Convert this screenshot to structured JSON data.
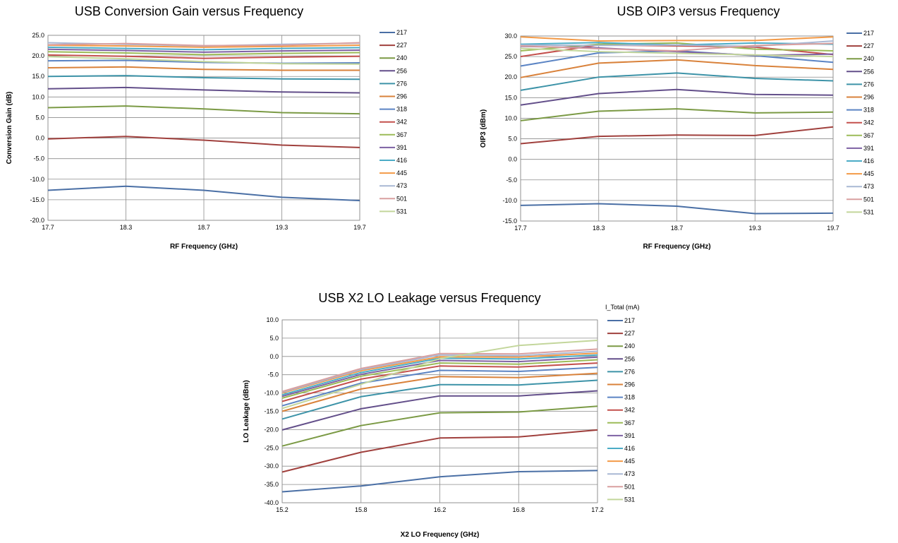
{
  "chart_data": [
    {
      "type": "line",
      "title": "USB Conversion Gain versus Frequency",
      "xlabel": "RF Frequency (GHz)",
      "ylabel": "Conversion Gain (dB)",
      "x": [
        "17.7",
        "18.3",
        "18.7",
        "19.3",
        "19.7"
      ],
      "ylim": [
        -20,
        25
      ],
      "yticks": [
        "25.0",
        "20.0",
        "15.0",
        "10.0",
        "5.0",
        "0.0",
        "-5.0",
        "-10.0",
        "-15.0",
        "-20.0"
      ],
      "grid": true,
      "legend_position": "right",
      "legend_title": "",
      "series": [
        {
          "name": "217",
          "values": [
            -12.7,
            -11.7,
            -12.7,
            -14.4,
            -15.2
          ]
        },
        {
          "name": "227",
          "values": [
            -0.2,
            0.4,
            -0.5,
            -1.7,
            -2.3
          ]
        },
        {
          "name": "240",
          "values": [
            7.4,
            7.8,
            7.1,
            6.2,
            5.9
          ]
        },
        {
          "name": "256",
          "values": [
            12.0,
            12.3,
            11.7,
            11.2,
            11.0
          ]
        },
        {
          "name": "276",
          "values": [
            15.0,
            15.2,
            14.7,
            14.4,
            14.3
          ]
        },
        {
          "name": "296",
          "values": [
            17.1,
            17.3,
            16.7,
            16.5,
            16.5
          ]
        },
        {
          "name": "318",
          "values": [
            18.8,
            18.9,
            18.4,
            18.2,
            18.3
          ]
        },
        {
          "name": "342",
          "values": [
            20.2,
            19.9,
            19.4,
            19.7,
            19.9
          ]
        },
        {
          "name": "367",
          "values": [
            21.0,
            20.7,
            20.3,
            20.6,
            20.8
          ]
        },
        {
          "name": "391",
          "values": [
            21.6,
            21.3,
            20.9,
            21.2,
            21.4
          ]
        },
        {
          "name": "416",
          "values": [
            22.1,
            21.8,
            21.5,
            21.8,
            22.0
          ]
        },
        {
          "name": "445",
          "values": [
            22.6,
            22.4,
            22.1,
            22.3,
            22.6
          ]
        },
        {
          "name": "473",
          "values": [
            23.2,
            22.8,
            22.4,
            22.8,
            23.1
          ]
        },
        {
          "name": "501",
          "values": [
            22.7,
            23.0,
            22.5,
            22.6,
            23.2
          ]
        },
        {
          "name": "531",
          "values": [
            19.8,
            19.3,
            18.6,
            18.1,
            18.0
          ]
        }
      ],
      "colors": [
        "#4a6fa5",
        "#a0403d",
        "#7b9a45",
        "#634f8a",
        "#3d93a8",
        "#d9823b",
        "#5b84c4",
        "#c4504d",
        "#9cbb58",
        "#7d61a3",
        "#4bacc6",
        "#f39a47",
        "#a9b8d4",
        "#d9a0a0",
        "#c3d69b"
      ]
    },
    {
      "type": "line",
      "title": "USB OIP3 versus Frequency",
      "xlabel": "RF Frequency (GHz)",
      "ylabel": "OIP3  (dBm)",
      "x": [
        "17.7",
        "18.3",
        "18.7",
        "19.3",
        "19.7"
      ],
      "ylim": [
        -15,
        30
      ],
      "yticks": [
        "30.0",
        "25.0",
        "20.0",
        "15.0",
        "10.0",
        "5.0",
        "0.0",
        "-5.0",
        "-10.0",
        "-15.0"
      ],
      "grid": true,
      "legend_position": "right",
      "legend_title": "",
      "series": [
        {
          "name": "217",
          "values": [
            -11.2,
            -10.8,
            -11.4,
            -13.2,
            -13.1
          ]
        },
        {
          "name": "227",
          "values": [
            3.8,
            5.6,
            5.9,
            5.8,
            7.9
          ]
        },
        {
          "name": "240",
          "values": [
            9.4,
            11.7,
            12.3,
            11.3,
            11.5
          ]
        },
        {
          "name": "256",
          "values": [
            13.2,
            16.0,
            17.0,
            15.8,
            15.6
          ]
        },
        {
          "name": "276",
          "values": [
            16.8,
            20.0,
            21.0,
            19.7,
            19.1
          ]
        },
        {
          "name": "296",
          "values": [
            19.9,
            23.4,
            24.2,
            22.8,
            21.9
          ]
        },
        {
          "name": "318",
          "values": [
            22.7,
            25.9,
            26.4,
            25.2,
            23.6
          ]
        },
        {
          "name": "342",
          "values": [
            25.0,
            27.8,
            27.6,
            27.3,
            25.5
          ]
        },
        {
          "name": "367",
          "values": [
            26.4,
            28.0,
            28.3,
            26.8,
            26.4
          ]
        },
        {
          "name": "391",
          "values": [
            27.5,
            27.1,
            26.2,
            25.3,
            25.6
          ]
        },
        {
          "name": "416",
          "values": [
            28.0,
            28.4,
            27.8,
            28.3,
            28.0
          ]
        },
        {
          "name": "445",
          "values": [
            29.8,
            28.8,
            28.9,
            28.9,
            29.8
          ]
        },
        {
          "name": "473",
          "values": [
            27.8,
            27.7,
            27.8,
            27.5,
            28.8
          ]
        },
        {
          "name": "501",
          "values": [
            27.6,
            26.9,
            26.4,
            27.7,
            28.2
          ]
        },
        {
          "name": "531",
          "values": [
            27.0,
            26.2,
            25.8,
            25.4,
            25.0
          ]
        }
      ],
      "colors": [
        "#4a6fa5",
        "#a0403d",
        "#7b9a45",
        "#634f8a",
        "#3d93a8",
        "#d9823b",
        "#5b84c4",
        "#c4504d",
        "#9cbb58",
        "#7d61a3",
        "#4bacc6",
        "#f39a47",
        "#a9b8d4",
        "#d9a0a0",
        "#c3d69b"
      ]
    },
    {
      "type": "line",
      "title": "USB X2 LO Leakage versus Frequency",
      "xlabel": "X2 LO Frequency (GHz)",
      "ylabel": "LO Leakage  (dBm)",
      "x": [
        "15.2",
        "15.8",
        "16.2",
        "16.8",
        "17.2"
      ],
      "ylim": [
        -40,
        10
      ],
      "yticks": [
        "10.0",
        "5.0",
        "0.0",
        "-5.0",
        "-10.0",
        "-15.0",
        "-20.0",
        "-25.0",
        "-30.0",
        "-35.0",
        "-40.0"
      ],
      "grid": true,
      "legend_position": "right",
      "legend_title": "I_Total (mA)",
      "series": [
        {
          "name": "217",
          "values": [
            -37.0,
            -35.4,
            -32.9,
            -31.5,
            -31.2
          ]
        },
        {
          "name": "227",
          "values": [
            -31.6,
            -26.2,
            -22.3,
            -22.0,
            -20.1
          ]
        },
        {
          "name": "240",
          "values": [
            -24.5,
            -18.9,
            -15.4,
            -15.2,
            -13.6
          ]
        },
        {
          "name": "256",
          "values": [
            -20.1,
            -14.3,
            -10.8,
            -10.8,
            -9.4
          ]
        },
        {
          "name": "276",
          "values": [
            -17.1,
            -11.0,
            -7.7,
            -7.8,
            -6.5
          ]
        },
        {
          "name": "296",
          "values": [
            -15.0,
            -8.9,
            -5.5,
            -5.8,
            -4.6
          ]
        },
        {
          "name": "318",
          "values": [
            -13.5,
            -7.3,
            -3.8,
            -4.1,
            -3.0
          ]
        },
        {
          "name": "342",
          "values": [
            -12.3,
            -6.2,
            -2.6,
            -2.9,
            -1.8
          ]
        },
        {
          "name": "367",
          "values": [
            -11.4,
            -5.4,
            -1.8,
            -2.1,
            -0.9
          ]
        },
        {
          "name": "391",
          "values": [
            -10.9,
            -4.9,
            -1.1,
            -1.4,
            -0.2
          ]
        },
        {
          "name": "416",
          "values": [
            -10.5,
            -4.4,
            -0.5,
            -0.7,
            0.4
          ]
        },
        {
          "name": "445",
          "values": [
            -10.0,
            -3.9,
            -0.1,
            -0.2,
            0.9
          ]
        },
        {
          "name": "473",
          "values": [
            -9.8,
            -3.6,
            0.4,
            0.2,
            1.4
          ]
        },
        {
          "name": "501",
          "values": [
            -9.6,
            -3.3,
            0.8,
            0.7,
            2.0
          ]
        },
        {
          "name": "531",
          "values": [
            -14.2,
            -7.6,
            -0.6,
            3.0,
            4.4
          ]
        }
      ],
      "colors": [
        "#4a6fa5",
        "#a0403d",
        "#7b9a45",
        "#634f8a",
        "#3d93a8",
        "#d9823b",
        "#5b84c4",
        "#c4504d",
        "#9cbb58",
        "#7d61a3",
        "#4bacc6",
        "#f39a47",
        "#a9b8d4",
        "#d9a0a0",
        "#c3d69b"
      ]
    }
  ]
}
